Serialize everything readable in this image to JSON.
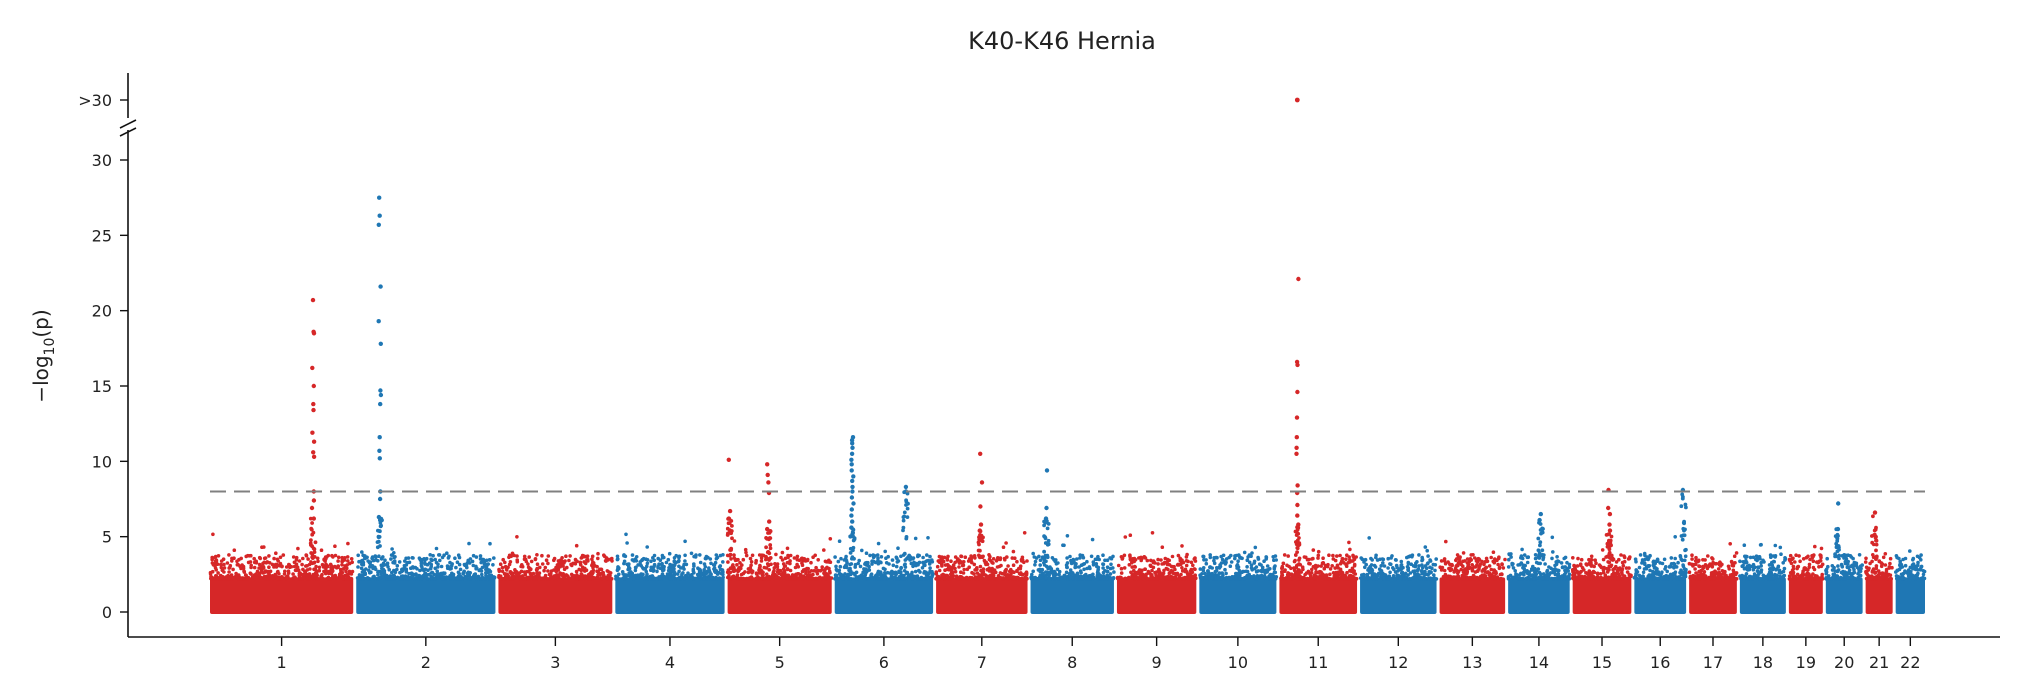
{
  "chart_data": {
    "type": "scatter",
    "subtype": "manhattan",
    "title": "K40-K46 Hernia",
    "ylabel_main": "−log",
    "ylabel_sub": "10",
    "ylabel_tail": "(p)",
    "xlabel": "",
    "ylim": [
      0,
      31
    ],
    "y_ticks": [
      "0",
      "5",
      "10",
      "15",
      "20",
      "25",
      "30"
    ],
    "y_break_label": ">30",
    "threshold": 8,
    "threshold_style": "dashed grey",
    "grid": false,
    "legend": "none",
    "colors": {
      "odd": "#d62728",
      "even": "#1f77b4",
      "threshold": "#808080"
    },
    "chromosomes": [
      "1",
      "2",
      "3",
      "4",
      "5",
      "6",
      "7",
      "8",
      "9",
      "10",
      "11",
      "12",
      "13",
      "14",
      "15",
      "16",
      "17",
      "18",
      "19",
      "20",
      "21",
      "22"
    ],
    "chromosome_sizes": [
      249,
      242,
      198,
      190,
      181,
      171,
      159,
      145,
      138,
      134,
      135,
      133,
      114,
      107,
      102,
      90,
      83,
      80,
      59,
      64,
      47,
      51
    ],
    "peaks": [
      {
        "chr": "1",
        "pos": 0.72,
        "values": [
          20.7,
          18.6,
          18.5,
          16.2,
          15.0,
          13.8,
          13.4,
          11.9,
          11.3,
          10.6,
          10.3,
          8.0,
          7.4,
          6.9,
          6.2
        ]
      },
      {
        "chr": "2",
        "pos": 0.17,
        "values": [
          27.5,
          26.3,
          25.7,
          21.6,
          19.3,
          17.8,
          14.7,
          14.4,
          13.8,
          11.6,
          10.7,
          10.2,
          8.0,
          7.5,
          6.3
        ]
      },
      {
        "chr": "5",
        "pos": 0.02,
        "values": [
          10.1,
          6.7,
          6.2
        ]
      },
      {
        "chr": "5",
        "pos": 0.39,
        "values": [
          9.8,
          9.1,
          8.6,
          7.9,
          6.0,
          5.5
        ]
      },
      {
        "chr": "6",
        "pos": 0.18,
        "values": [
          11.6,
          11.4,
          11.2,
          10.9,
          10.5,
          10.1,
          9.8,
          9.4,
          9.0,
          8.7,
          8.3,
          8.0,
          7.6,
          7.2,
          6.8,
          6.4,
          6.0,
          5.6
        ]
      },
      {
        "chr": "6",
        "pos": 0.72,
        "values": [
          8.3,
          8.0
        ]
      },
      {
        "chr": "7",
        "pos": 0.49,
        "values": [
          10.5,
          8.6,
          7.0,
          5.8,
          5.4
        ]
      },
      {
        "chr": "8",
        "pos": 0.19,
        "values": [
          9.4,
          6.9,
          6.2
        ]
      },
      {
        "chr": "11",
        "pos": 0.23,
        "values": [
          22.1,
          16.6,
          16.4,
          14.6,
          12.9,
          11.6,
          10.9,
          10.5,
          8.4,
          7.9,
          7.1,
          6.4,
          5.8
        ]
      },
      {
        "chr": "14",
        "pos": 0.53,
        "values": [
          6.5,
          6.1
        ]
      },
      {
        "chr": "15",
        "pos": 0.62,
        "values": [
          8.1,
          6.9,
          6.5,
          5.8,
          5.4
        ]
      },
      {
        "chr": "16",
        "pos": 0.95,
        "values": [
          8.1
        ]
      },
      {
        "chr": "20",
        "pos": 0.31,
        "values": [
          7.2,
          5.5
        ]
      },
      {
        "chr": "21",
        "pos": 0.32,
        "values": [
          6.6
        ]
      }
    ],
    "above_break": [
      {
        "chr": "11",
        "pos": 0.23,
        "label": ">30"
      }
    ]
  }
}
